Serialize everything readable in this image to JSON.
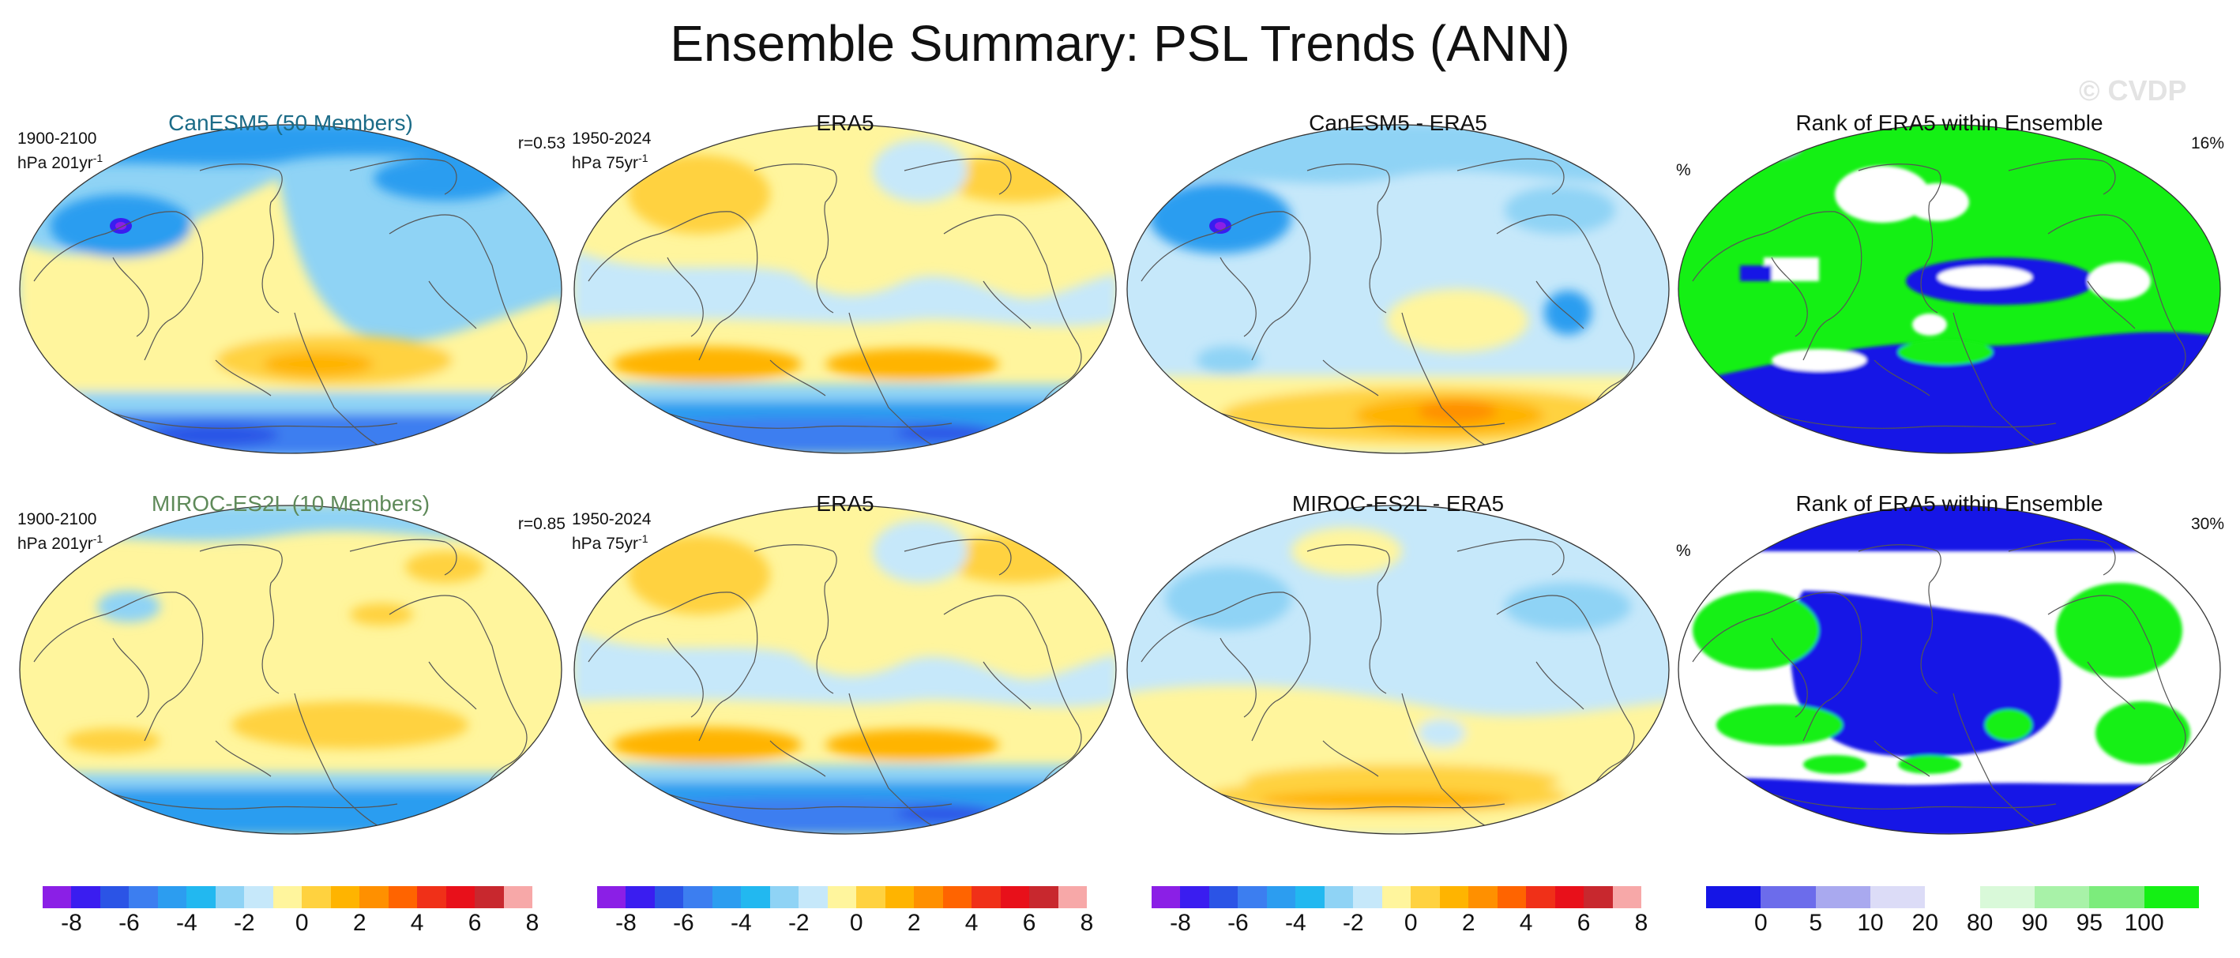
{
  "figure": {
    "title": "Ensemble Summary: PSL Trends (ANN)",
    "watermark": "© CVDP"
  },
  "rows": [
    {
      "model": {
        "title": "CanESM5 (50 Members)",
        "title_color": "#1b6b87",
        "period": "1900-2100",
        "units": "hPa 201yr",
        "units_exp": "-1",
        "corner": "r=0.53"
      },
      "obs": {
        "title": "ERA5",
        "period": "1950-2024",
        "units": "hPa 75yr",
        "units_exp": "-1"
      },
      "diff": {
        "title": "CanESM5 - ERA5"
      },
      "rank": {
        "title": "Rank of ERA5 within Ensemble",
        "left": "%",
        "corner": "16%"
      }
    },
    {
      "model": {
        "title": "MIROC-ES2L (10 Members)",
        "title_color": "#5f8a5a",
        "period": "1900-2100",
        "units": "hPa 201yr",
        "units_exp": "-1",
        "corner": "r=0.85"
      },
      "obs": {
        "title": "ERA5",
        "period": "1950-2024",
        "units": "hPa 75yr",
        "units_exp": "-1"
      },
      "diff": {
        "title": "MIROC-ES2L - ERA5"
      },
      "rank": {
        "title": "Rank of ERA5 within Ensemble",
        "left": "%",
        "corner": "30%"
      }
    }
  ],
  "colorbars": {
    "trend": {
      "colors": [
        "#8b1fe6",
        "#3a1df0",
        "#2b54e6",
        "#3c7ef0",
        "#2c9df0",
        "#22b8f0",
        "#8fd3f5",
        "#c6e8fa",
        "#fff59d",
        "#ffd23f",
        "#ffb400",
        "#ff9000",
        "#ff6400",
        "#f03018",
        "#e8101a",
        "#c8282e",
        "#f7a8a8"
      ],
      "labels": [
        "-8",
        "-6",
        "-4",
        "-2",
        "0",
        "2",
        "4",
        "6",
        "8"
      ]
    },
    "rank": {
      "colors": [
        "#1515e6",
        "#6c6ceb",
        "#a9a9ef",
        "#dcdcf7",
        "#ffffff",
        "#d9f9d9",
        "#a8f2a8",
        "#7cec7c",
        "#14f014"
      ],
      "labels": [
        "0",
        "5",
        "10",
        "20",
        "80",
        "90",
        "95",
        "100"
      ]
    }
  }
}
